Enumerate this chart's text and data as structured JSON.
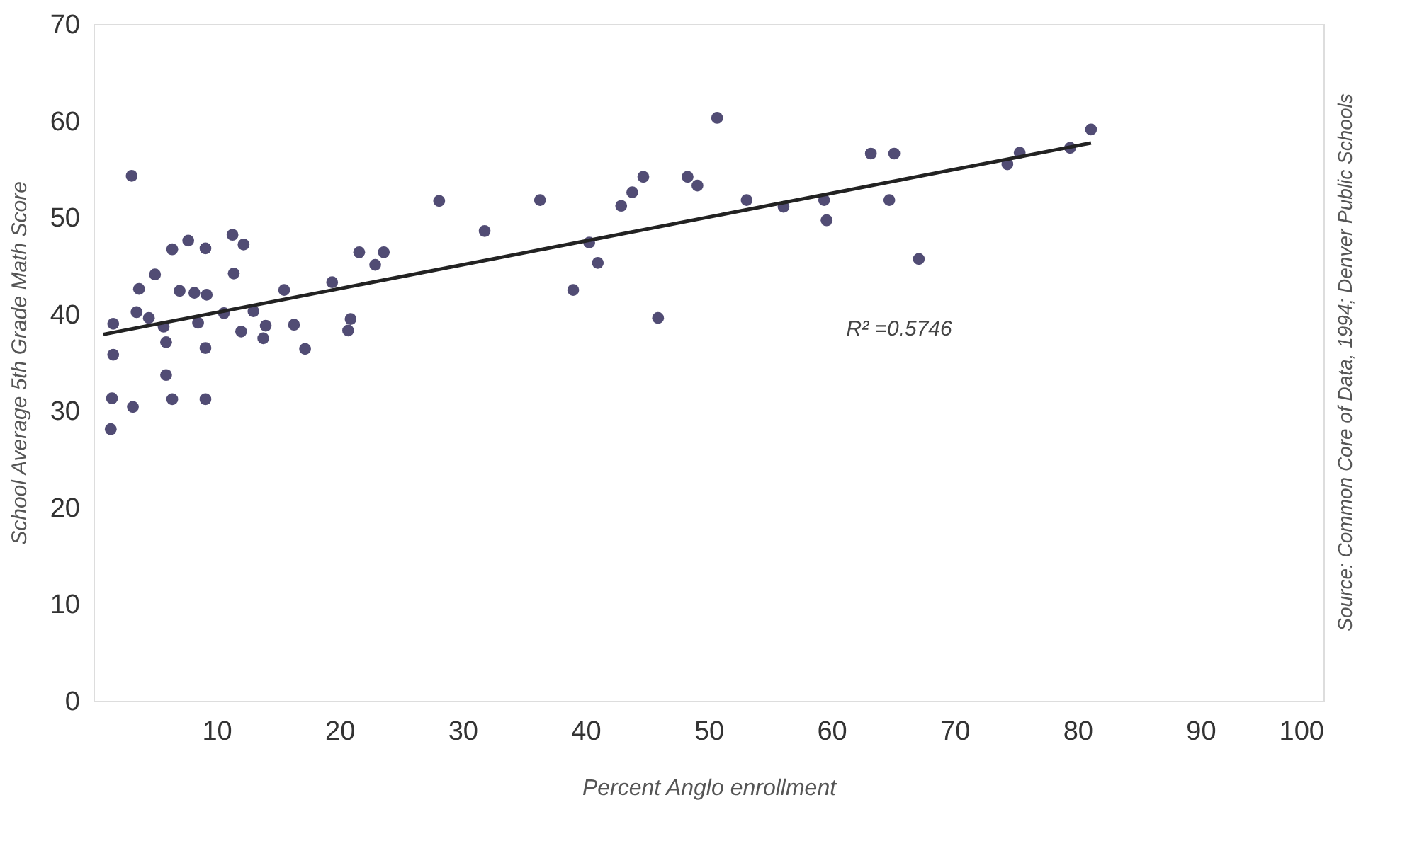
{
  "chart_data": {
    "type": "scatter",
    "xlabel": "Percent Anglo enrollment",
    "ylabel": "School Average 5th Grade Math Score",
    "xlim": [
      0,
      100
    ],
    "xticks": [
      10,
      20,
      30,
      40,
      50,
      60,
      70,
      80,
      90,
      100
    ],
    "ylim": [
      0,
      70
    ],
    "yticks": [
      0,
      10,
      20,
      30,
      40,
      50,
      60,
      70
    ],
    "series": [
      {
        "color": "#514c74",
        "marker": "circle",
        "x": [
          1.6,
          1.6,
          1.5,
          1.4,
          3.2,
          3.5,
          3.7,
          4.5,
          5.0,
          5.7,
          5.9,
          5.9,
          6.4,
          6.4,
          7.0,
          7.7,
          8.2,
          8.5,
          9.1,
          9.2,
          9.1,
          9.1,
          10.6,
          11.3,
          11.4,
          12.2,
          12.0,
          13.0,
          13.8,
          14.0,
          15.5,
          16.3,
          17.2,
          19.4,
          20.7,
          20.9,
          21.6,
          22.9,
          23.6,
          3.1,
          28.1,
          31.8,
          36.3,
          39.0,
          40.3,
          41.0,
          42.9,
          43.8,
          44.7,
          45.9,
          48.3,
          49.1,
          50.7,
          53.1,
          56.1,
          59.4,
          59.6,
          63.2,
          65.1,
          64.7,
          67.1,
          74.3,
          75.3,
          79.4,
          81.1
        ],
        "values": [
          39.0,
          35.8,
          31.3,
          28.1,
          30.4,
          40.2,
          42.6,
          39.6,
          44.1,
          38.7,
          37.1,
          33.7,
          31.2,
          46.7,
          42.4,
          47.6,
          42.2,
          39.1,
          46.8,
          42.0,
          36.5,
          31.2,
          40.1,
          48.2,
          44.2,
          47.2,
          38.2,
          40.3,
          37.5,
          38.8,
          42.5,
          38.9,
          36.4,
          43.3,
          38.3,
          39.5,
          46.4,
          45.1,
          46.4,
          54.3,
          51.7,
          48.6,
          51.8,
          42.5,
          47.4,
          45.3,
          51.2,
          52.6,
          54.2,
          39.6,
          54.2,
          53.3,
          60.3,
          51.8,
          51.1,
          51.8,
          49.7,
          56.6,
          56.6,
          51.8,
          45.7,
          55.5,
          56.7,
          57.2,
          59.1
        ]
      },
      {
        "type": "line",
        "color": "#222222",
        "marker": "none",
        "line_style": "solid",
        "x": [
          0.8,
          81.1
        ],
        "values": [
          37.9,
          57.7
        ]
      }
    ],
    "annotations": [
      "R² =0.5746",
      "Source: Common Core of Data, 1994; Denver Public Schools"
    ]
  }
}
